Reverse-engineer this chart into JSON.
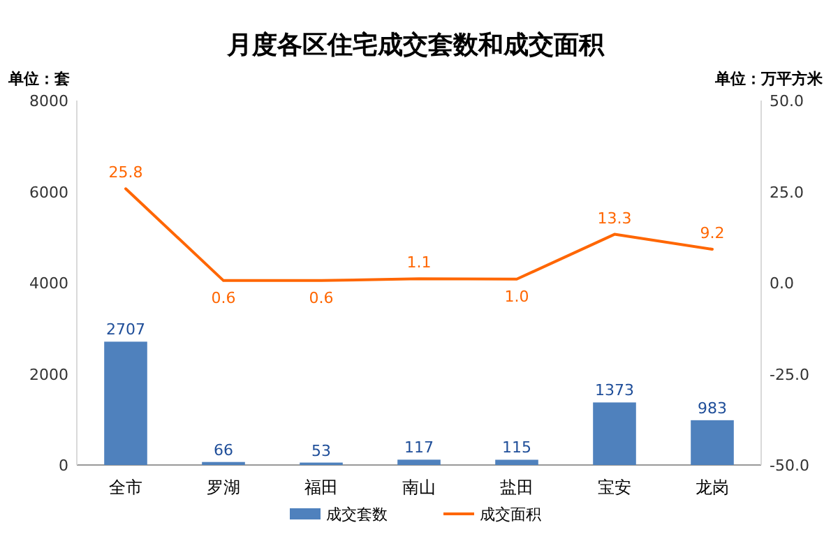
{
  "chart_data": {
    "type": "bar",
    "title": "月度各区住宅成交套数和成交面积",
    "ylabel": "单位：套",
    "y2label": "单位：万平方米",
    "categories": [
      "全市",
      "罗湖",
      "福田",
      "南山",
      "盐田",
      "宝安",
      "龙岗"
    ],
    "series": [
      {
        "name": "成交套数",
        "color": "#4f81bd",
        "values": [
          2707,
          66,
          53,
          117,
          115,
          1373,
          983
        ]
      },
      {
        "name": "成交面积",
        "type": "line",
        "axis": "y2",
        "color": "#ff6600",
        "values": [
          25.8,
          0.6,
          0.6,
          1.1,
          1.0,
          13.3,
          9.2
        ],
        "value_labels": [
          "25.8",
          "0.6",
          "0.6",
          "1.1",
          "1.0",
          "13.3",
          "9.2"
        ]
      }
    ],
    "ylim": [
      0,
      8000
    ],
    "yticks": [
      0,
      2000,
      4000,
      6000,
      8000
    ],
    "y2lim": [
      -50,
      50
    ],
    "y2ticks": [
      {
        "value": -50,
        "label": "-50.0"
      },
      {
        "value": -25,
        "label": "-25.0"
      },
      {
        "value": 0,
        "label": "0.0"
      },
      {
        "value": 25,
        "label": "25.0"
      },
      {
        "value": 50,
        "label": "50.0"
      }
    ],
    "data_labels": true,
    "legend": "bottom"
  }
}
